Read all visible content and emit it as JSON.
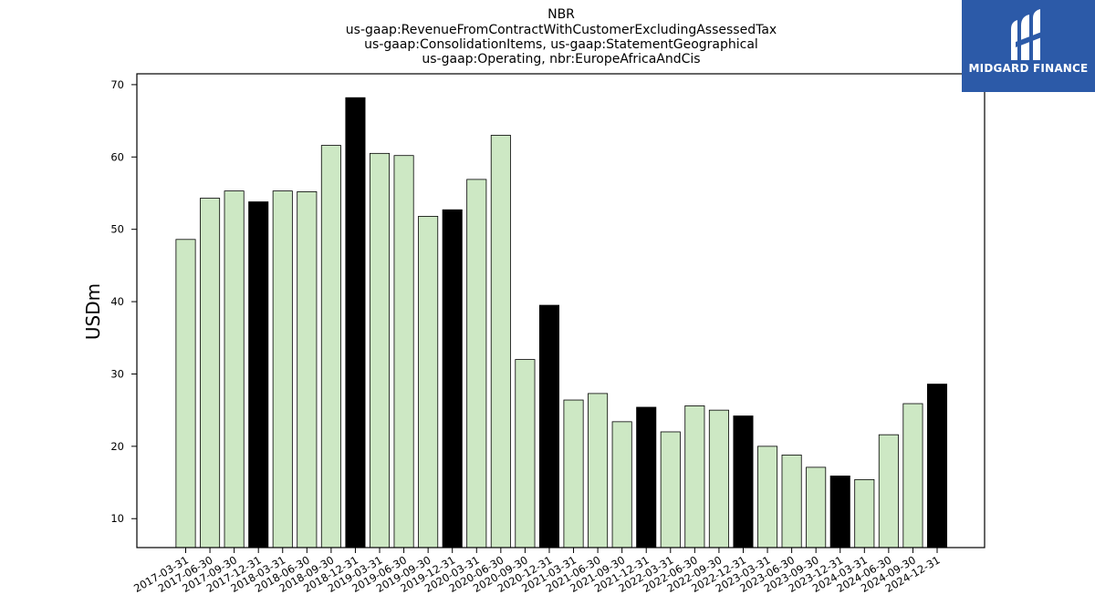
{
  "logo": {
    "text": "MIDGARD FINANCE",
    "icon": "midgard-finance-logo-icon",
    "background": "#2c5aa8"
  },
  "chart_data": {
    "type": "bar",
    "title": [
      "NBR",
      "us-gaap:RevenueFromContractWithCustomerExcludingAssessedTax",
      "us-gaap:ConsolidationItems, us-gaap:StatementGeographical",
      "us-gaap:Operating, nbr:EuropeAfricaAndCis"
    ],
    "xlabel": "",
    "ylabel": "USDm",
    "ylim": [
      6,
      71.5
    ],
    "yticks": [
      10,
      20,
      30,
      40,
      50,
      60,
      70
    ],
    "grid": false,
    "colors": {
      "quarter": "#cde8c4",
      "year_end": "#000000",
      "edge": "#000000"
    },
    "categories": [
      "2017-03-31",
      "2017-06-30",
      "2017-09-30",
      "2017-12-31",
      "2018-03-31",
      "2018-06-30",
      "2018-09-30",
      "2018-12-31",
      "2019-03-31",
      "2019-06-30",
      "2019-09-30",
      "2019-12-31",
      "2020-03-31",
      "2020-06-30",
      "2020-09-30",
      "2020-12-31",
      "2021-03-31",
      "2021-06-30",
      "2021-09-30",
      "2021-12-31",
      "2022-03-31",
      "2022-06-30",
      "2022-09-30",
      "2022-12-31",
      "2023-03-31",
      "2023-06-30",
      "2023-09-30",
      "2023-12-31",
      "2024-03-31",
      "2024-06-30",
      "2024-09-30",
      "2024-12-31"
    ],
    "values": [
      48.6,
      54.3,
      55.3,
      53.8,
      55.3,
      55.2,
      61.6,
      68.2,
      60.5,
      60.2,
      51.8,
      52.7,
      56.9,
      63.0,
      32.0,
      39.5,
      26.4,
      27.3,
      23.4,
      25.4,
      22.0,
      25.6,
      25.0,
      24.2,
      20.0,
      18.8,
      17.1,
      15.9,
      15.4,
      21.6,
      25.9,
      28.6
    ]
  }
}
